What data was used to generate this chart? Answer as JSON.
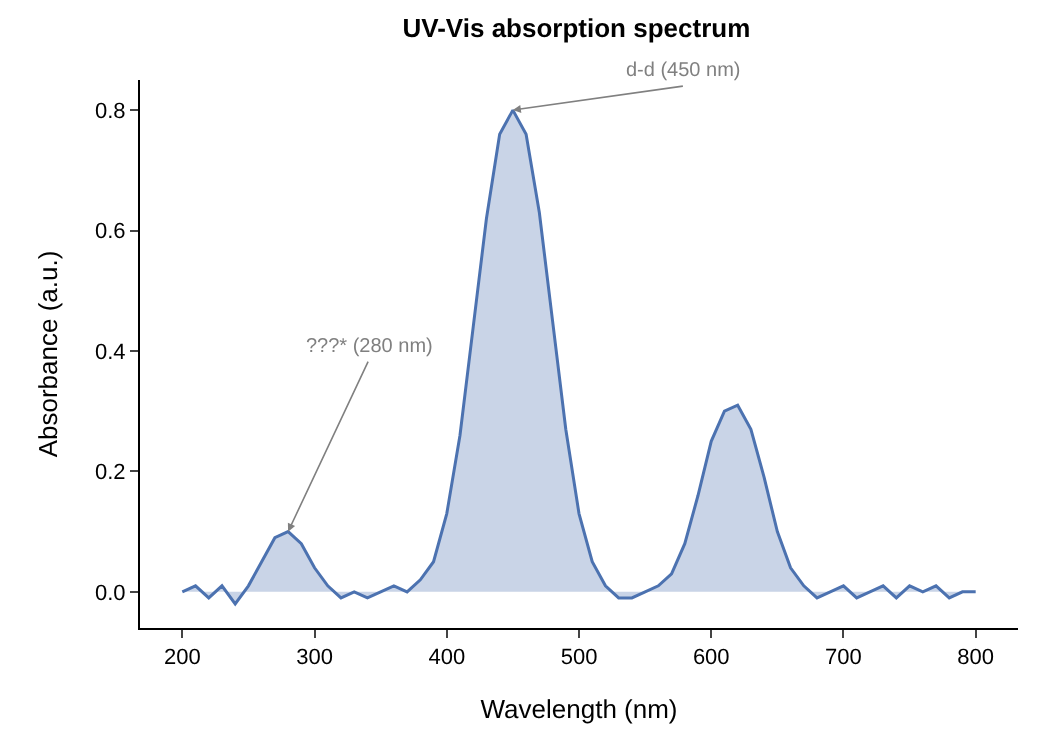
{
  "chart_data": {
    "type": "area",
    "title": "UV-Vis absorption spectrum",
    "xlabel": "Wavelength (nm)",
    "ylabel": "Absorbance (a.u.)",
    "x": [
      200,
      210,
      220,
      230,
      240,
      250,
      260,
      270,
      280,
      290,
      300,
      310,
      320,
      330,
      340,
      350,
      360,
      370,
      380,
      390,
      400,
      410,
      420,
      430,
      440,
      450,
      460,
      470,
      480,
      490,
      500,
      510,
      520,
      530,
      540,
      550,
      560,
      570,
      580,
      590,
      600,
      610,
      620,
      630,
      640,
      650,
      660,
      670,
      680,
      690,
      700,
      710,
      720,
      730,
      740,
      750,
      760,
      770,
      780,
      790,
      800
    ],
    "series": [
      {
        "color": "#4c72b0",
        "values": [
          0.0,
          0.01,
          -0.01,
          0.01,
          -0.02,
          0.01,
          0.05,
          0.09,
          0.1,
          0.08,
          0.04,
          0.01,
          -0.01,
          0.0,
          -0.01,
          0.0,
          0.01,
          0.0,
          0.02,
          0.05,
          0.13,
          0.26,
          0.44,
          0.62,
          0.76,
          0.8,
          0.76,
          0.63,
          0.45,
          0.27,
          0.13,
          0.05,
          0.01,
          -0.01,
          -0.01,
          0.0,
          0.01,
          0.03,
          0.08,
          0.16,
          0.25,
          0.3,
          0.31,
          0.27,
          0.19,
          0.1,
          0.04,
          0.01,
          -0.01,
          0.0,
          0.01,
          -0.01,
          0.0,
          0.01,
          -0.01,
          0.01,
          0.0,
          0.01,
          -0.01,
          0.0,
          0.0
        ]
      }
    ],
    "annotations": [
      {
        "text": "???* (280 nm)",
        "x": 280,
        "y": 0.1
      },
      {
        "text": "d-d (450 nm)",
        "x": 450,
        "y": 0.8
      }
    ],
    "xlim": [
      168,
      832
    ],
    "ylim": [
      -0.06,
      0.85
    ],
    "xticks": [
      200,
      300,
      400,
      500,
      600,
      700,
      800
    ],
    "yticks": [
      {
        "value": 0,
        "label": "0.0"
      },
      0.2,
      0.4,
      0.6,
      0.8
    ]
  }
}
